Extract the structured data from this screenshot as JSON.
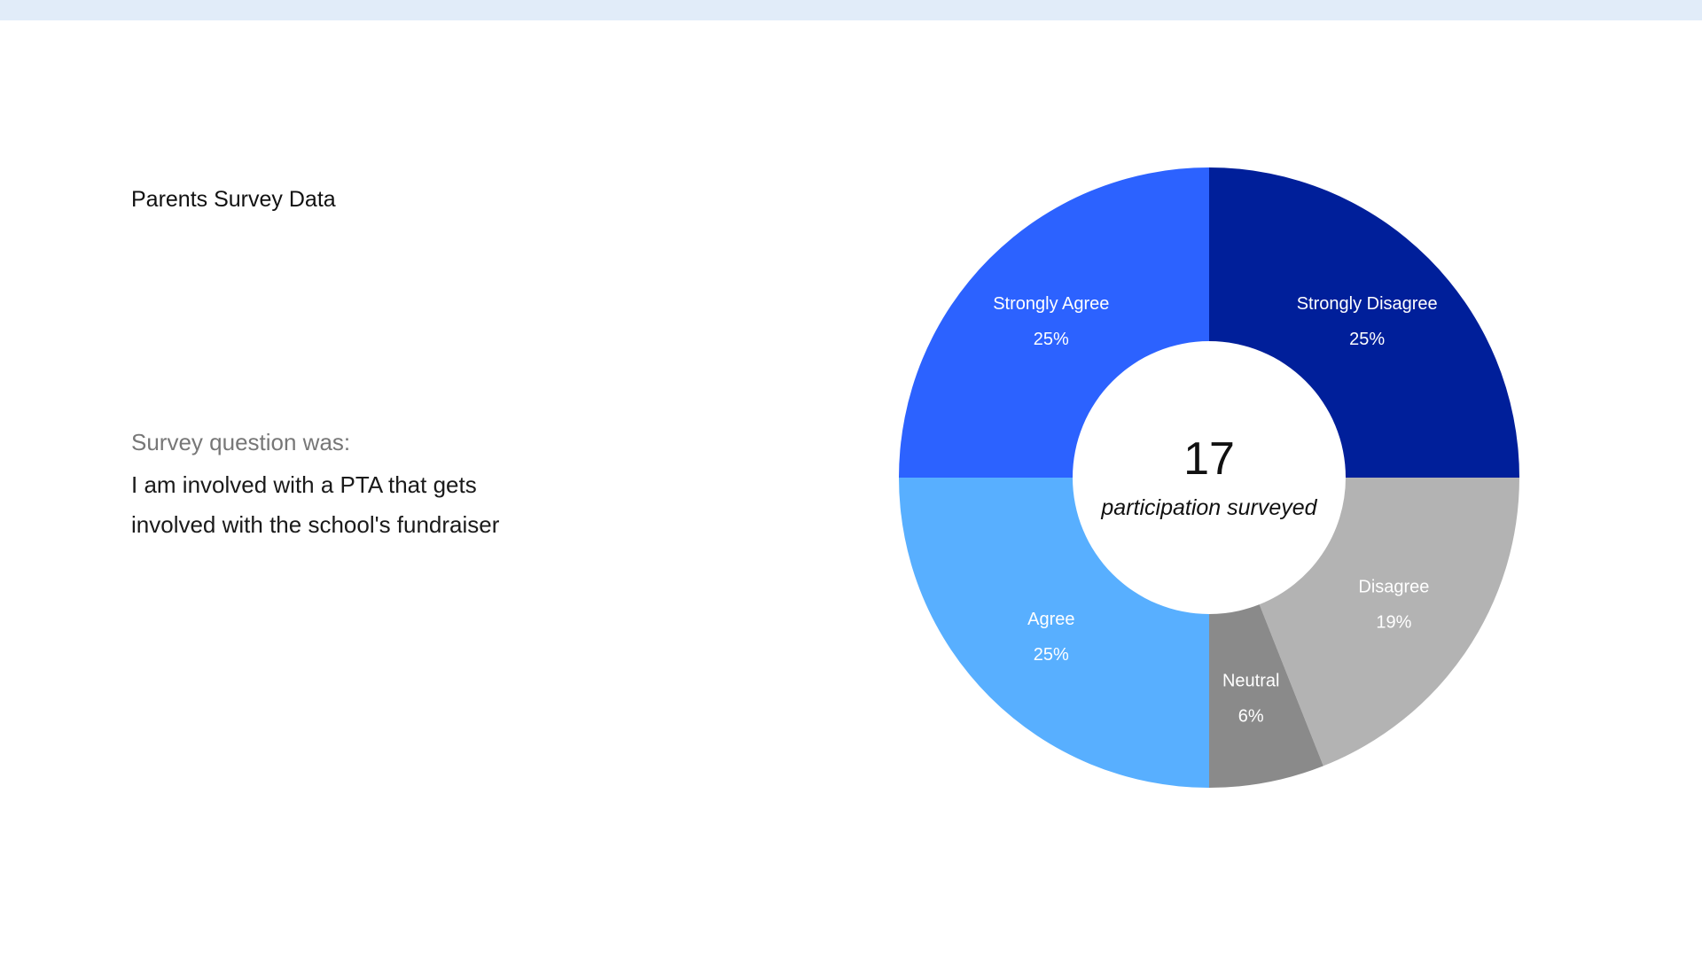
{
  "page": {
    "title": "Parents Survey Data",
    "question_label": "Survey question was:",
    "question_line1": "I am involved with a PTA that gets",
    "question_line2": "involved with the school's fundraiser"
  },
  "colors": {
    "top_band": "#e1ecf9"
  },
  "chart_data": {
    "type": "pie",
    "donut": true,
    "title": "",
    "center_value": "17",
    "center_caption": "participation surveyed",
    "slices": [
      {
        "label": "Strongly Disagree",
        "value": 25,
        "display": "25%",
        "color": "#001f9a"
      },
      {
        "label": "Disagree",
        "value": 19,
        "display": "19%",
        "color": "#b3b3b3"
      },
      {
        "label": "Neutral",
        "value": 6,
        "display": "6%",
        "color": "#8a8a8a"
      },
      {
        "label": "Agree",
        "value": 25,
        "display": "25%",
        "color": "#58afff"
      },
      {
        "label": "Strongly Agree",
        "value": 25,
        "display": "25%",
        "color": "#2c62ff"
      }
    ],
    "legend": "none"
  }
}
